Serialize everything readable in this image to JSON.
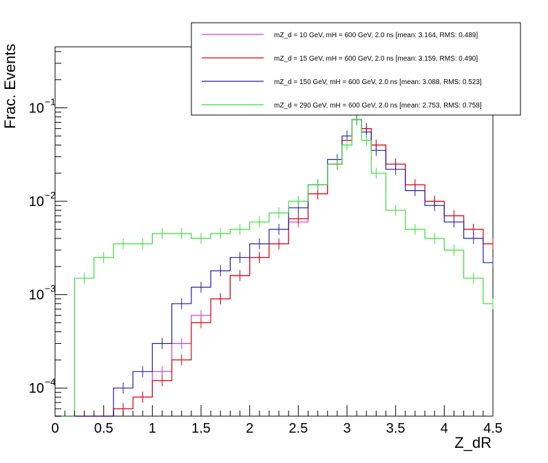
{
  "chart_data": {
    "type": "line",
    "xlabel": "Z_dR",
    "ylabel": "Frac. Events",
    "xlim": [
      0,
      4.5
    ],
    "ylim": [
      5e-05,
      0.45
    ],
    "yscale": "log",
    "grid": false,
    "legend_position": "top-right",
    "x_ticks": [
      "0",
      "0.5",
      "1",
      "1.5",
      "2",
      "2.5",
      "3",
      "3.5",
      "4",
      "4.5"
    ],
    "y_ticks": [
      {
        "base": "10",
        "exp": "−4",
        "value": 0.0001
      },
      {
        "base": "10",
        "exp": "−3",
        "value": 0.001
      },
      {
        "base": "10",
        "exp": "−2",
        "value": 0.01
      },
      {
        "base": "10",
        "exp": "−1",
        "value": 0.1
      }
    ],
    "x": [
      0.1,
      0.3,
      0.5,
      0.7,
      0.9,
      1.1,
      1.3,
      1.5,
      1.7,
      1.9,
      2.1,
      2.3,
      2.5,
      2.7,
      2.9,
      3.0,
      3.1,
      3.2,
      3.3,
      3.5,
      3.7,
      3.9,
      4.1,
      4.3,
      4.5
    ],
    "series": [
      {
        "name": "mZ_d = 10 GeV, mH = 600 GeV, 2.0 ns [mean: 3.164, RMS: 0.489]",
        "color": "#d633d6",
        "values": [
          4e-05,
          4e-05,
          4e-05,
          6e-05,
          8e-05,
          0.00015,
          0.0003,
          0.0006,
          0.0009,
          0.0016,
          0.0025,
          0.0035,
          0.006,
          0.012,
          0.025,
          0.045,
          0.075,
          0.06,
          0.04,
          0.025,
          0.015,
          0.01,
          0.007,
          0.005,
          0.0035
        ]
      },
      {
        "name": "mZ_d = 15 GeV, mH = 600 GeV, 2.0 ns [mean: 3.159, RMS: 0.490]",
        "color": "#e00000",
        "values": [
          4e-05,
          4e-05,
          4e-05,
          6e-05,
          8e-05,
          0.00012,
          0.0002,
          0.0005,
          0.0009,
          0.0016,
          0.0025,
          0.0035,
          0.0065,
          0.012,
          0.025,
          0.045,
          0.075,
          0.06,
          0.04,
          0.025,
          0.015,
          0.01,
          0.007,
          0.005,
          0.0035
        ]
      },
      {
        "name": "mZ_d = 150 GeV, mH = 600 GeV, 2.0 ns [mean: 3.088, RMS: 0.523]",
        "color": "#1a1ab0",
        "values": [
          4e-05,
          4e-05,
          4e-05,
          0.0001,
          0.00015,
          0.0003,
          0.0008,
          0.0012,
          0.0018,
          0.0025,
          0.0035,
          0.005,
          0.0085,
          0.015,
          0.028,
          0.05,
          0.075,
          0.055,
          0.035,
          0.022,
          0.013,
          0.009,
          0.006,
          0.004,
          0.0022
        ]
      },
      {
        "name": "mZ_d = 290 GeV, mH = 600 GeV, 2.0 ns [mean: 2.753, RMS: 0.758]",
        "color": "#33dd33",
        "values": [
          4e-05,
          0.0015,
          0.0025,
          0.0035,
          0.0035,
          0.0045,
          0.0045,
          0.004,
          0.0045,
          0.005,
          0.006,
          0.0075,
          0.01,
          0.015,
          0.025,
          0.04,
          0.075,
          0.045,
          0.02,
          0.008,
          0.005,
          0.004,
          0.003,
          0.0015,
          0.0008
        ]
      }
    ]
  }
}
